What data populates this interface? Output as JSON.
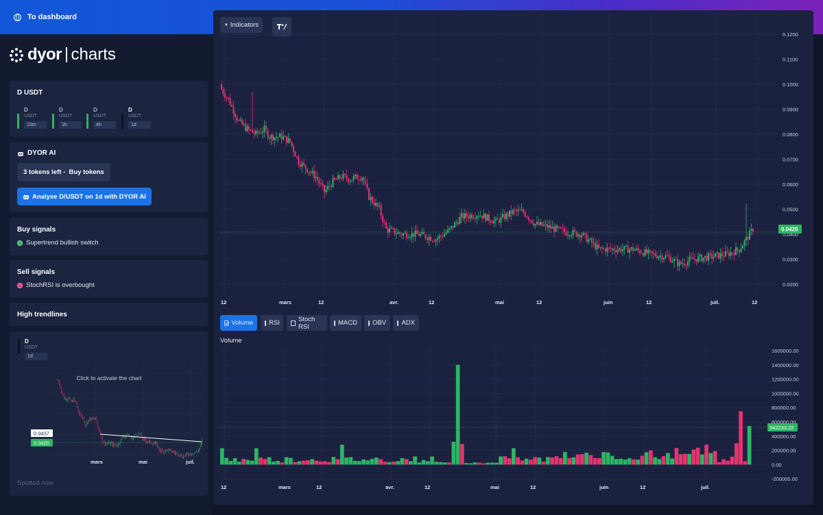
{
  "topbar": {
    "dashboard_label": "To dashboard",
    "globe_icon": "globe-icon"
  },
  "logo": {
    "brand": "dyor",
    "sub": "charts"
  },
  "pair_card": {
    "title": "D USDT",
    "timeframes": [
      {
        "symbol": "D",
        "quote": "USDT",
        "interval": "15m"
      },
      {
        "symbol": "D",
        "quote": "USDT",
        "interval": "1h"
      },
      {
        "symbol": "D",
        "quote": "USDT",
        "interval": "4h"
      },
      {
        "symbol": "D",
        "quote": "USDT",
        "interval": "1d"
      }
    ]
  },
  "ai_card": {
    "title": "DYOR AI",
    "buy_tokens_label": "3 tokens left -  Buy tokens",
    "analyse_label": "Analyse D/USDT on 1d with DYOR AI"
  },
  "buy_signals": {
    "title": "Buy signals",
    "items": [
      "Supertrend bullish switch"
    ]
  },
  "sell_signals": {
    "title": "Sell signals",
    "items": [
      "StochRSI is overbought"
    ]
  },
  "trendlines": {
    "title": "High trendlines"
  },
  "mini_chart": {
    "symbol": "D",
    "quote": "USDT",
    "interval": "1d",
    "overlay_text": "Click to activate the chart",
    "price_label_white": "0.0437",
    "price_label_green": "0.0420",
    "x_labels": [
      "mars",
      "mai",
      "juil."
    ],
    "footer": "Spotted now"
  },
  "main_chart": {
    "indicators_label": "Indicators",
    "tv_logo": "tradingview-logo-icon",
    "y_ticks": [
      "0.1200",
      "0.1100",
      "0.1000",
      "0.0900",
      "0.0800",
      "0.0700",
      "0.0600",
      "0.0500",
      "0.0400",
      "0.0300",
      "0.0200"
    ],
    "x_labels": [
      "12",
      "mars",
      "12",
      "avr.",
      "12",
      "mai",
      "12",
      "juin",
      "12",
      "juil.",
      "12"
    ],
    "last_price": "0.0420",
    "colors": {
      "up": "#2eb563",
      "down": "#e6336f",
      "background": "#1b2240",
      "accent": "#1a73e8"
    }
  },
  "indicator_tabs": [
    {
      "label": "Volume",
      "checked": true
    },
    {
      "label": "RSI",
      "checked": false
    },
    {
      "label": "Stoch RSI",
      "checked": false
    },
    {
      "label": "MACD",
      "checked": false
    },
    {
      "label": "OBV",
      "checked": false
    },
    {
      "label": "ADX",
      "checked": false
    }
  ],
  "volume_chart": {
    "title": "Volume",
    "y_ticks": [
      "1600000.00",
      "1400000.00",
      "1200000.00",
      "1000000.00",
      "800000.00",
      "600000.00",
      "400000.00",
      "200000.00",
      "0.00",
      "-200000.00"
    ],
    "x_labels": [
      "12",
      "mars",
      "12",
      "avr.",
      "12",
      "mai",
      "12",
      "juin",
      "12",
      "juil."
    ],
    "last_volume": "542233.22"
  }
}
